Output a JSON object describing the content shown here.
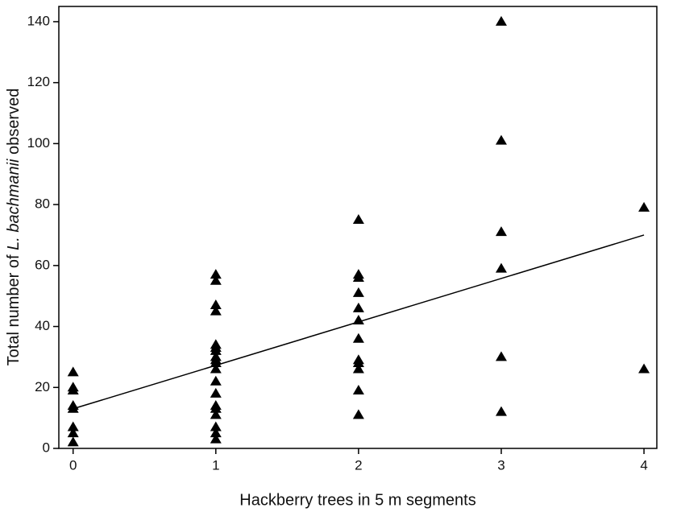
{
  "chart_data": {
    "type": "scatter",
    "xlabel": "Hackberry trees in 5 m segments",
    "ylabel_parts": [
      "Total number of ",
      "L. bachmanii",
      " observed"
    ],
    "xlim": [
      -0.1,
      4.09
    ],
    "ylim": [
      0,
      145
    ],
    "xticks": [
      0,
      1,
      2,
      3,
      4
    ],
    "yticks": [
      0,
      20,
      40,
      60,
      80,
      100,
      120,
      140
    ],
    "grid": false,
    "series": [
      {
        "color": "#000000",
        "x": [
          0,
          0,
          0,
          0,
          0,
          0,
          0,
          0,
          1,
          1,
          1,
          1,
          1,
          1,
          1,
          1,
          1,
          1,
          1,
          1,
          1,
          1,
          1,
          1,
          1,
          1,
          1,
          2,
          2,
          2,
          2,
          2,
          2,
          2,
          2,
          2,
          2,
          2,
          2,
          3,
          3,
          3,
          3,
          3,
          3,
          4,
          4
        ],
        "values": [
          25,
          20,
          19,
          14,
          13,
          7,
          5,
          2,
          57,
          55,
          47,
          45,
          34,
          33,
          32,
          30,
          29,
          28,
          26,
          22,
          18,
          14,
          13,
          11,
          7,
          5,
          3,
          75,
          57,
          56,
          51,
          46,
          42,
          36,
          29,
          28,
          26,
          19,
          11,
          140,
          101,
          71,
          59,
          30,
          12,
          79,
          26
        ]
      }
    ],
    "trend_line": {
      "color": "#000000",
      "x": [
        0,
        4
      ],
      "values": [
        13,
        70
      ]
    }
  }
}
